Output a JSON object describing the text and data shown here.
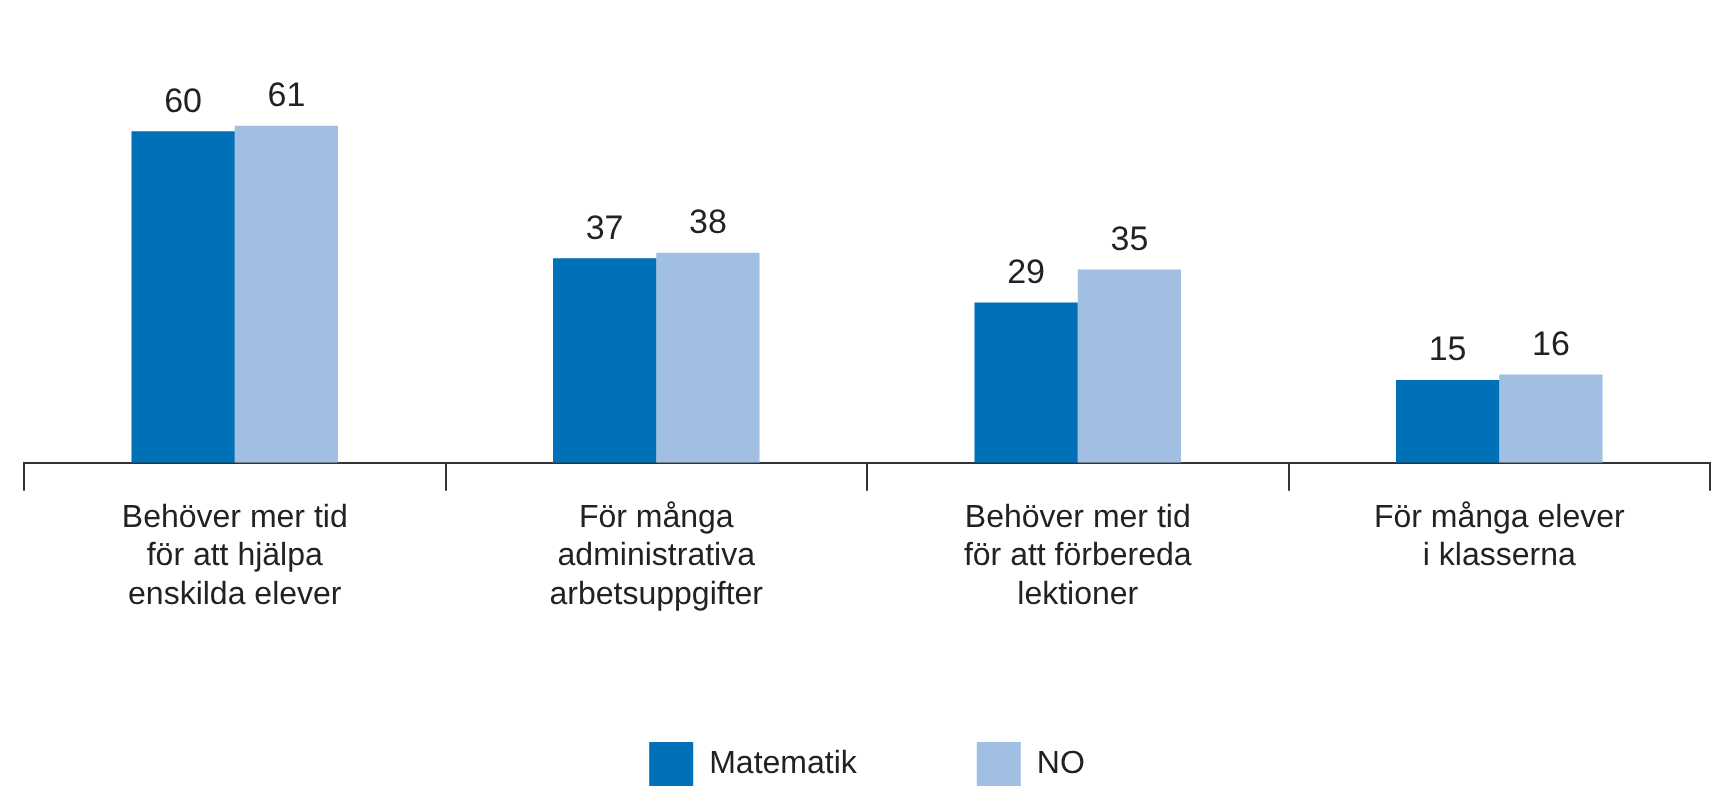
{
  "chart_data": {
    "type": "bar",
    "categories": [
      "Behöver mer tid för att hjälpa enskilda elever",
      "För många administrativa arbetsuppgifter",
      "Behöver mer tid för att förbereda lektioner",
      "För många elever i klasserna"
    ],
    "series": [
      {
        "name": "Matematik",
        "color": "#0070b8",
        "values": [
          60,
          37,
          29,
          15
        ]
      },
      {
        "name": "NO",
        "color": "#a0bfe2",
        "values": [
          61,
          38,
          35,
          16
        ]
      }
    ],
    "data_labels": true,
    "grid": false,
    "legend": "bottom"
  }
}
